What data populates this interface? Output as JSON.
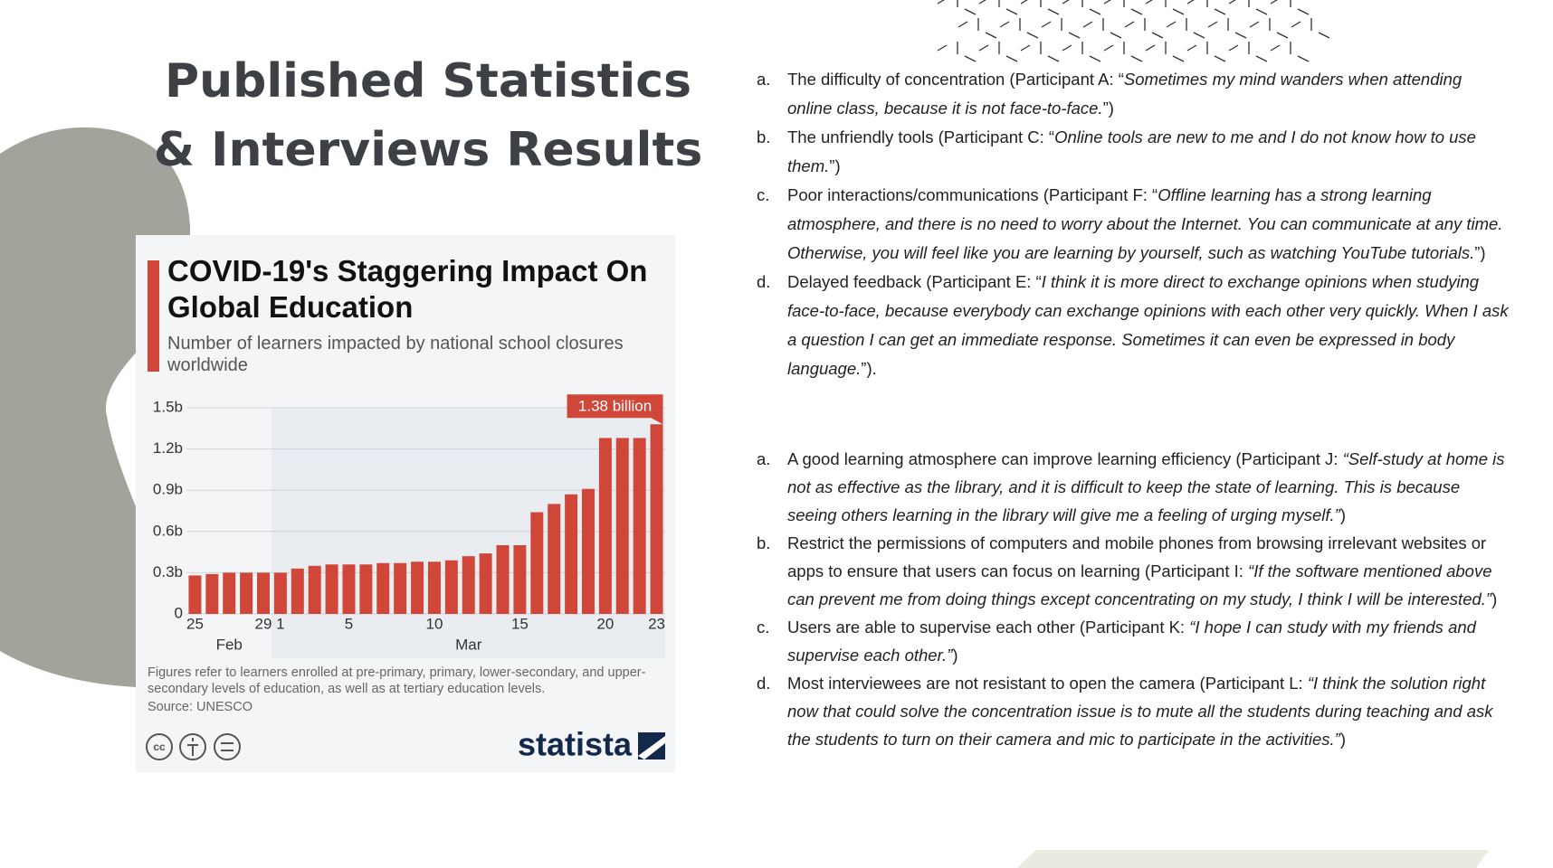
{
  "slide": {
    "title_lines": [
      "Published Statistics",
      "& Interviews Results"
    ]
  },
  "chart_data": {
    "type": "bar",
    "title": "COVID-19's Staggering Impact On Global Education",
    "subtitle": "Number of learners impacted by national school closures worldwide",
    "categories": [
      "25",
      null,
      null,
      null,
      "29",
      "1",
      null,
      null,
      null,
      "5",
      null,
      null,
      null,
      null,
      "10",
      null,
      null,
      null,
      null,
      "15",
      null,
      null,
      null,
      null,
      "20",
      null,
      null,
      "23"
    ],
    "month_labels": [
      "Feb",
      "Mar"
    ],
    "values": [
      0.28,
      0.29,
      0.3,
      0.3,
      0.3,
      0.3,
      0.33,
      0.35,
      0.36,
      0.36,
      0.36,
      0.37,
      0.37,
      0.38,
      0.38,
      0.39,
      0.42,
      0.44,
      0.5,
      0.5,
      0.74,
      0.8,
      0.87,
      0.91,
      1.28,
      1.28,
      1.28,
      1.38
    ],
    "value_labels": [
      null,
      null,
      null,
      null,
      null,
      null,
      null,
      null,
      null,
      null,
      null,
      null,
      null,
      null,
      null,
      null,
      null,
      null,
      null,
      null,
      null,
      null,
      null,
      null,
      null,
      null,
      null,
      "1.38 billion"
    ],
    "color": "#d0473a",
    "ylim": [
      0,
      1.5
    ],
    "yticks": [
      0,
      {
        "value": 0.3,
        "label": "0.3b"
      },
      {
        "value": 0.6,
        "label": "0.6b"
      },
      {
        "value": 0.9,
        "label": "0.9b"
      },
      {
        "value": 1.2,
        "label": "1.2b"
      },
      {
        "value": 1.5,
        "label": "1.5b"
      }
    ],
    "grid": true,
    "note": "Figures refer to learners enrolled at pre-primary, primary, lower-secondary, and upper-secondary levels of education, as well as at tertiary education levels.",
    "source": "Source: UNESCO",
    "brand": "statista"
  },
  "lists": [
    {
      "items": [
        {
          "letter": "a.",
          "lead": "The difficulty of concentration (Participant A: “",
          "quote": "Sometimes my mind wanders when attending online class, because it is not face-to-face.",
          "tail": "”)"
        },
        {
          "letter": "b.",
          "lead": "The unfriendly tools (Participant C: “",
          "quote": "Online tools are new to me and I do not know how to use them.",
          "tail": "”)"
        },
        {
          "letter": "c.",
          "lead": "Poor interactions/communications (Participant F: “",
          "quote": "Offline learning has a strong learning atmosphere, and there is no need to worry about the Internet. You can communicate at any time. Otherwise, you will feel like you are learning by yourself, such as watching YouTube tutorials.",
          "tail": "”)"
        },
        {
          "letter": "d.",
          "lead": "Delayed feedback (Participant E: “",
          "quote": "I think it is more direct to exchange opinions when studying face-to-face, because everybody can exchange opinions with each other very quickly. When I ask a question I can get an immediate response. Sometimes it can even be expressed in body language.",
          "tail": "”)."
        }
      ]
    },
    {
      "items": [
        {
          "letter": "a.",
          "lead": "A good learning atmosphere can improve learning efficiency (Participant J: ",
          "quote": "“Self-study at home is not as effective as the library, and it is difficult to keep the state of learning. This is because seeing others learning in the library will give me a feeling of urging myself.”",
          "tail": ")"
        },
        {
          "letter": "b.",
          "lead": "Restrict the permissions of computers and mobile phones from browsing irrelevant websites or apps to ensure that users can focus on learning (Participant I: ",
          "quote": "“If the software mentioned above can prevent me from doing things except concentrating on my study, I think I will be interested.”",
          "tail": ")"
        },
        {
          "letter": "c.",
          "lead": "Users are able to supervise each other (Participant K: ",
          "quote": "“I hope I can study with my friends and supervise each other.”",
          "tail": ")"
        },
        {
          "letter": "d.",
          "lead": "Most interviewees are not resistant to open the camera (Participant L: ",
          "quote": "“I think the solution right now that could solve the concentration issue is to mute all the students during teaching and ask the students to turn on their camera and mic to participate in the activities.”",
          "tail": ")"
        }
      ]
    }
  ]
}
